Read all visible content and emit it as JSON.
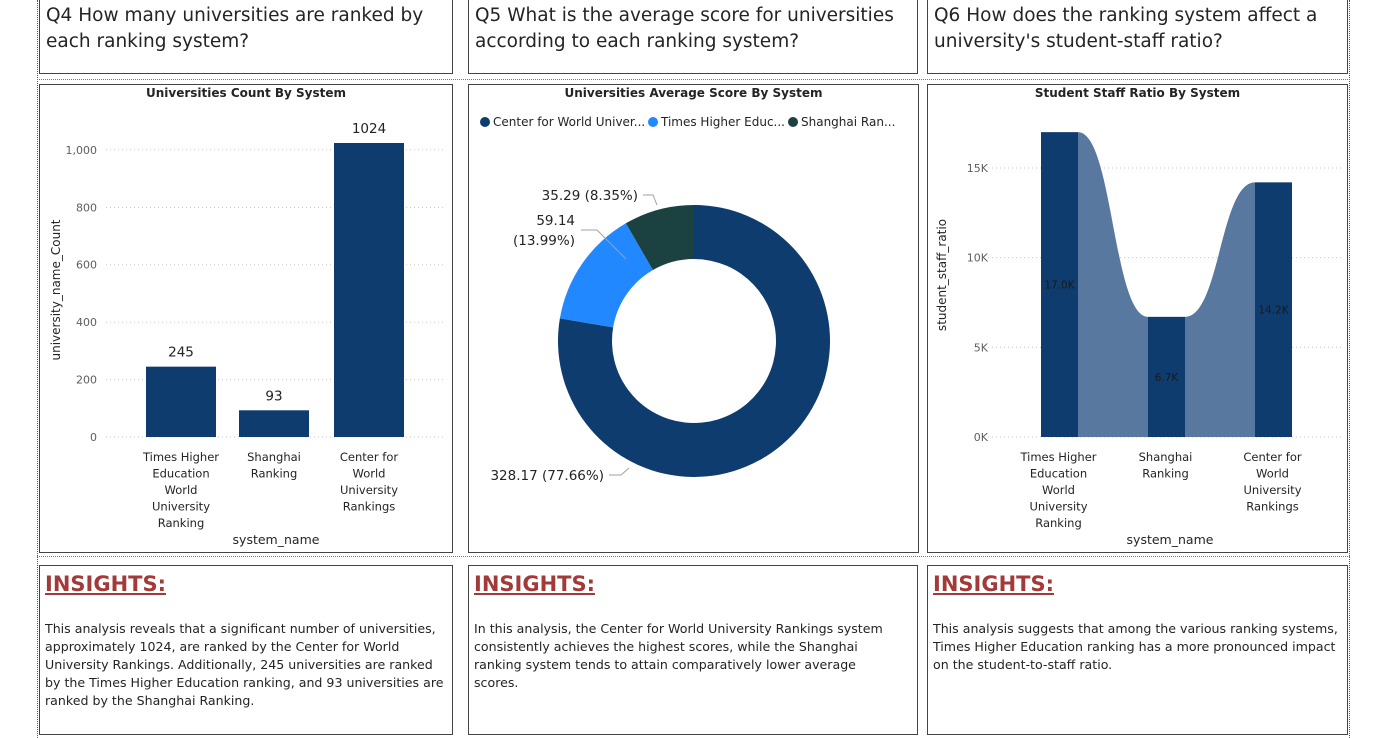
{
  "questions": [
    {
      "text": "Q4 How many universities are ranked by each ranking system?"
    },
    {
      "text": "Q5 What is the average score for universities according to each ranking system?"
    },
    {
      "text": "Q6 How does the ranking system affect a university's student-staff ratio?"
    }
  ],
  "insights": [
    {
      "title": "INSIGHTS:",
      "body": "This analysis reveals that a significant number of universities, approximately 1024, are ranked by the Center for World University Rankings. Additionally, 245 universities are ranked by the Times Higher Education ranking, and 93 universities are ranked by the Shanghai Ranking."
    },
    {
      "title": "INSIGHTS:",
      "body": "In this analysis, the Center for World University Rankings system consistently achieves the highest scores, while the Shanghai ranking system tends to attain comparatively lower average scores."
    },
    {
      "title": "INSIGHTS:",
      "body": "This analysis suggests that among the various ranking systems, Times Higher Education ranking has a more pronounced impact on the student-to-staff ratio."
    }
  ],
  "colors": {
    "dark_blue": "#0f3c6e",
    "light_blue": "#2188ff",
    "dark_teal": "#1b4140",
    "ribbon": "#5878a0",
    "insight_title": "#a33a3a"
  },
  "chart_data": [
    {
      "type": "bar",
      "title": "Universities Count By System",
      "xlabel": "system_name",
      "ylabel": "university_name_Count",
      "categories": [
        [
          "Times Higher",
          "Education",
          "World",
          "University",
          "Ranking"
        ],
        [
          "Shanghai",
          "Ranking"
        ],
        [
          "Center for",
          "World",
          "University",
          "Rankings"
        ]
      ],
      "values": [
        245,
        93,
        1024
      ],
      "ylim": [
        0,
        1024
      ],
      "yticks": [
        0,
        200,
        400,
        600,
        800,
        1000
      ],
      "ytick_labels": [
        "0",
        "200",
        "400",
        "600",
        "800",
        "1,000"
      ],
      "grid": true
    },
    {
      "type": "pie",
      "title": "Universities Average Score By System",
      "legend": [
        "Center for World Univer...",
        "Times Higher Educ...",
        "Shanghai Ran..."
      ],
      "legend_position": "top-left",
      "series": [
        {
          "name": "Center for World University Rankings",
          "value": 328.17,
          "label": "328.17 (77.66%)"
        },
        {
          "name": "Times Higher Education World University Ranking",
          "value": 59.14,
          "label_lines": [
            "59.14",
            "(13.99%)"
          ]
        },
        {
          "name": "Shanghai Ranking",
          "value": 35.29,
          "label": "35.29 (8.35%)"
        }
      ]
    },
    {
      "type": "bar",
      "title": "Student Staff Ratio By System",
      "xlabel": "system_name",
      "ylabel": "student_staff_ratio",
      "categories": [
        [
          "Times Higher",
          "Education",
          "World",
          "University",
          "Ranking"
        ],
        [
          "Shanghai",
          "Ranking"
        ],
        [
          "Center for",
          "World",
          "University",
          "Rankings"
        ]
      ],
      "values": [
        17000,
        6700,
        14200
      ],
      "value_labels": [
        "17.0K",
        "6.7K",
        "14.2K"
      ],
      "ylim": [
        0,
        17500
      ],
      "yticks": [
        0,
        5000,
        10000,
        15000
      ],
      "ytick_labels": [
        "0K",
        "5K",
        "10K",
        "15K"
      ],
      "grid": true
    }
  ]
}
